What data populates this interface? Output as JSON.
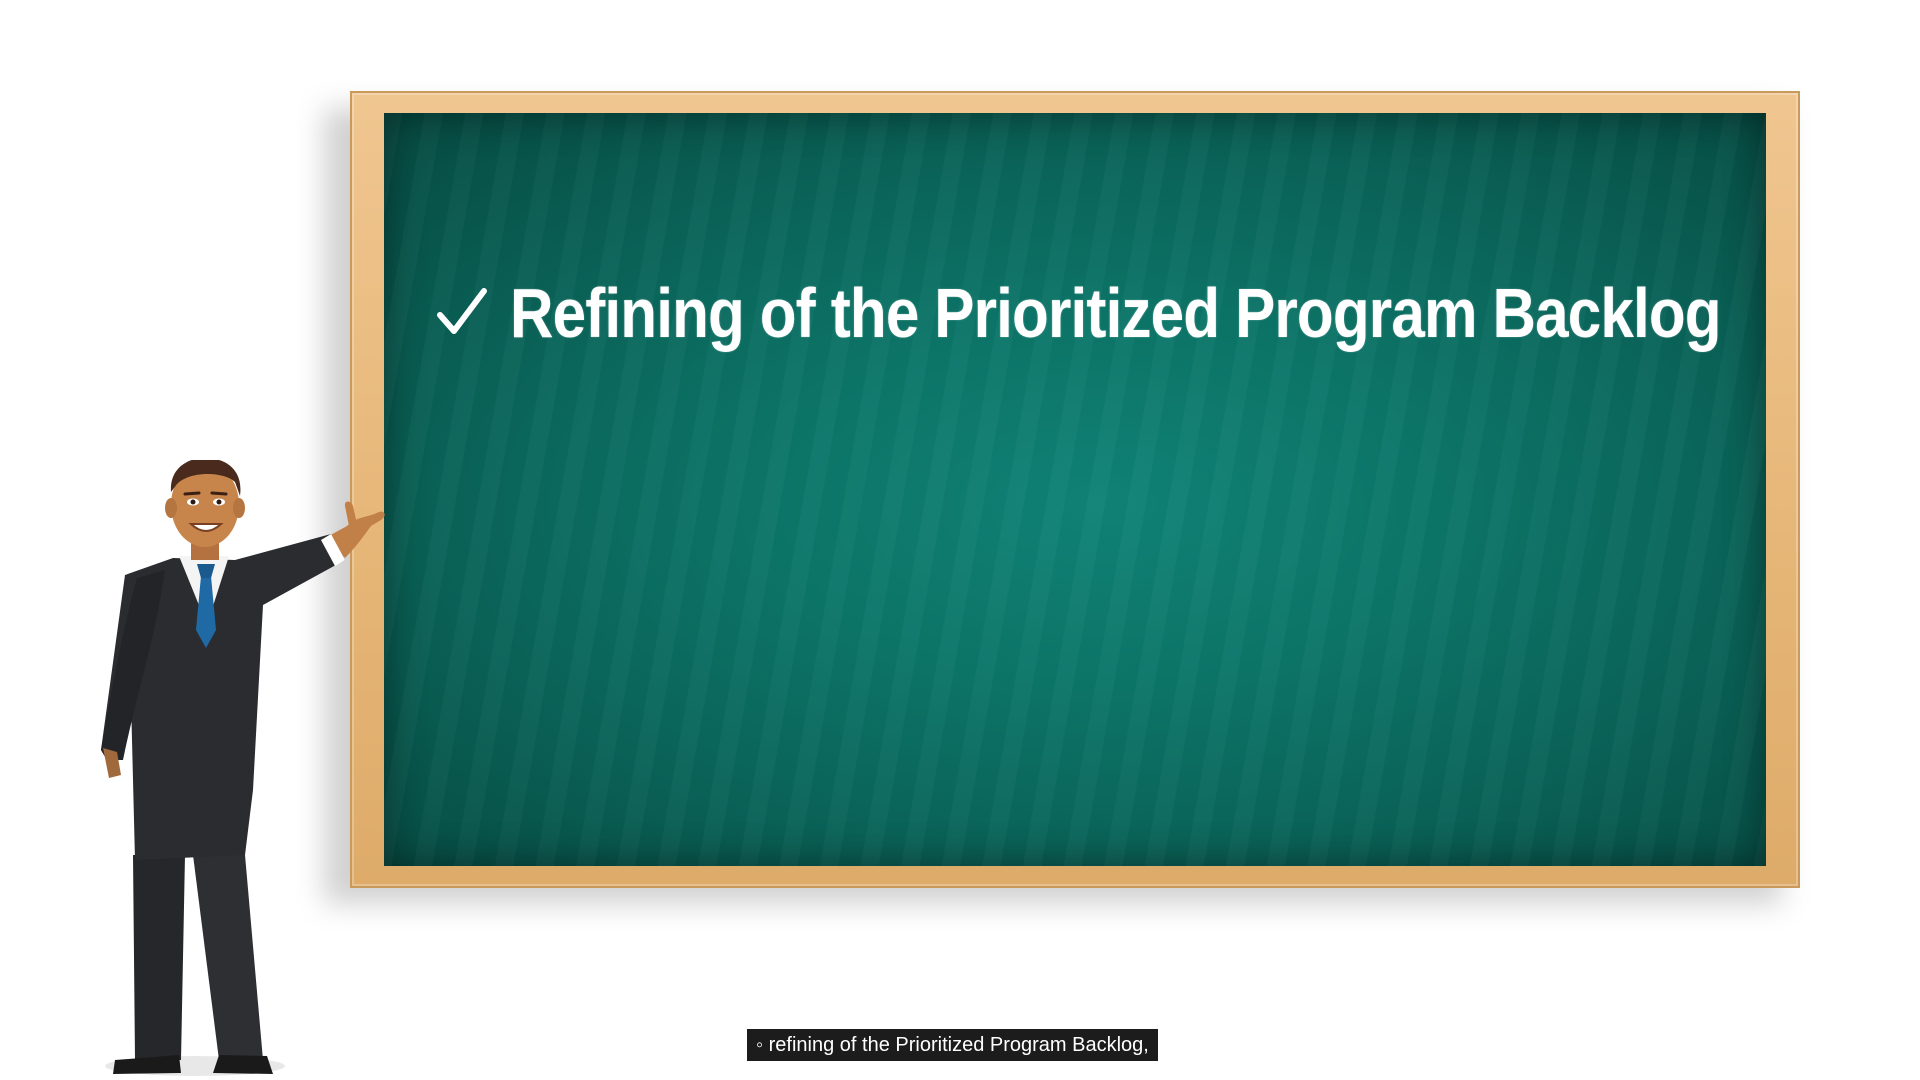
{
  "board": {
    "bullet_icon": "check-icon",
    "bullet_text": "Refining of the Prioritized Program Backlog"
  },
  "caption": {
    "text": "◦ refining of the Prioritized Program Backlog,"
  },
  "colors": {
    "chalkboard": "#0c7568",
    "frame": "#e7b87a",
    "suit": "#2b2c30",
    "tie": "#1f6aa5",
    "caption_bg": "#1c1c1c"
  }
}
